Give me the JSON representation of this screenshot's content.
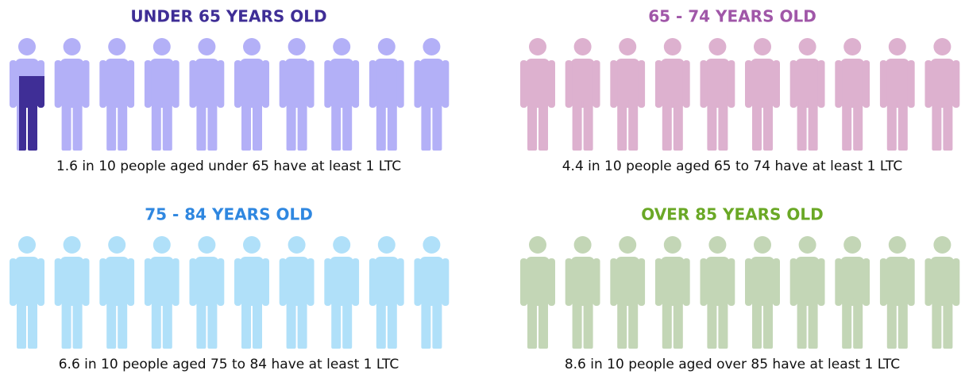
{
  "chart_data": [
    {
      "type": "pictograph",
      "title": "UNDER 65 YEARS OLD",
      "caption": "1.6 in 10 people aged under 65 have at least 1 LTC",
      "value": 1.6,
      "total": 10,
      "color": "#3f2e96",
      "empty_color": "#b3b0f7"
    },
    {
      "type": "pictograph",
      "title": "65 - 74 YEARS OLD",
      "caption": "4.4 in 10 people aged 65 to 74 have at least 1 LTC",
      "value": 4.4,
      "total": 10,
      "color": "#a057a8",
      "empty_color": "#ddb1cf"
    },
    {
      "type": "pictograph",
      "title": "75 - 84 YEARS OLD",
      "caption": "6.6 in 10 people aged 75 to 84 have at least 1 LTC",
      "value": 6.6,
      "total": 10,
      "color": "#2f87e0",
      "empty_color": "#b0e0f9"
    },
    {
      "type": "pictograph",
      "title": "OVER 85 YEARS OLD",
      "caption": "8.6 in 10 people aged over 85 have at least 1 LTC",
      "value": 8.6,
      "total": 10,
      "color": "#6aa826",
      "empty_color": "#c3d6b6"
    }
  ]
}
